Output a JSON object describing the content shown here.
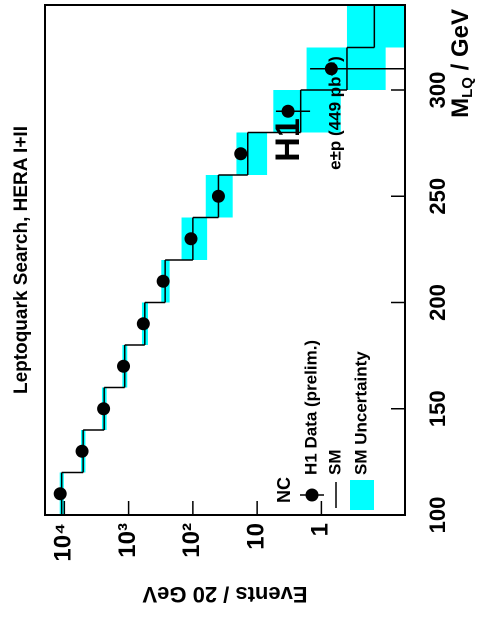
{
  "chart_data": {
    "type": "histogram",
    "title": "Leptoquark Search, HERA I+II",
    "x_label": {
      "main": "M",
      "sub": "LQ",
      "rest": " / GeV"
    },
    "y_label": "Events / 20 GeV",
    "annotations": [
      "H1",
      "e±p (449 pb⁻¹)"
    ],
    "legend_title": "NC",
    "legend": "bottom-left",
    "log_y": true,
    "bins": [
      100,
      120,
      140,
      160,
      180,
      200,
      220,
      240,
      260,
      280,
      300,
      320,
      340
    ],
    "xlim": [
      100,
      340
    ],
    "xticks": [
      100,
      150,
      200,
      250,
      300
    ],
    "ylim": [
      0.05,
      20000
    ],
    "yticks": [
      {
        "value": 10000,
        "label": "10⁴"
      },
      {
        "value": 1000,
        "label": "10³"
      },
      {
        "value": 100,
        "label": "10²"
      },
      10,
      1
    ],
    "series": [
      {
        "name": "H1 Data (prelim.)",
        "color": "#000000",
        "values": [
          11600,
          5300,
          2450,
          1200,
          590,
          290,
          107,
          40,
          18,
          3.3,
          0.7,
          null
        ],
        "errors": [
          108,
          73,
          49,
          35,
          24,
          17,
          10,
          6.3,
          4.2,
          1.8,
          0.8,
          null
        ]
      },
      {
        "name": "SM",
        "color": "#000000",
        "values": [
          11000,
          5100,
          2400,
          1150,
          560,
          270,
          100,
          40,
          14,
          2.1,
          0.4,
          0.15
        ]
      },
      {
        "name": "SM Uncertainty",
        "color": "#00ffff",
        "low": [
          10200,
          4700,
          2200,
          1050,
          500,
          230,
          60,
          24,
          7,
          0.5,
          0.1,
          0.05
        ],
        "high": [
          11800,
          5500,
          2600,
          1250,
          620,
          310,
          150,
          63,
          21,
          5.6,
          1.7,
          0.4
        ]
      }
    ]
  }
}
